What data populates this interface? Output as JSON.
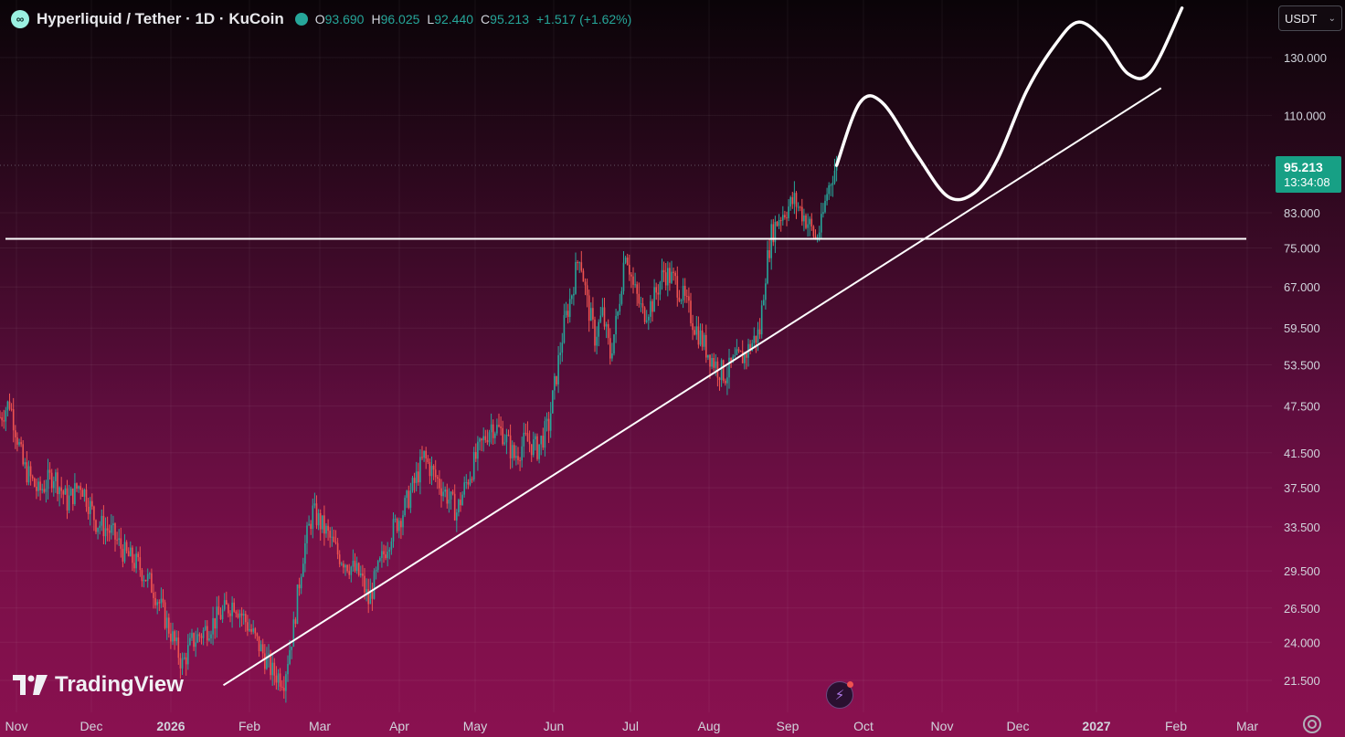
{
  "header": {
    "symbol_title": "Hyperliquid / Tether · 1D · KuCoin",
    "ohlc": [
      {
        "key": "O",
        "value": "93.690"
      },
      {
        "key": "H",
        "value": "96.025"
      },
      {
        "key": "L",
        "value": "92.440"
      },
      {
        "key": "C",
        "value": "95.213"
      },
      {
        "key": "",
        "value": "+1.517 (+1.62%)"
      }
    ]
  },
  "currency": {
    "label": "USDT"
  },
  "price_tag": {
    "price": "95.213",
    "countdown": "13:34:08"
  },
  "brand": {
    "name": "TradingView"
  },
  "colors": {
    "up": "#26a69a",
    "down": "#ef5350",
    "drawing": "#ffffff",
    "grid": "#ffffff"
  },
  "chart_data": {
    "type": "candlestick",
    "scale": "log",
    "y_ticks": [
      21.5,
      24.0,
      26.5,
      29.5,
      33.5,
      37.5,
      41.5,
      47.5,
      53.5,
      59.5,
      67.0,
      75.0,
      83.0,
      110.0,
      130.0
    ],
    "y_tick_labels": [
      "21.500",
      "24.000",
      "26.500",
      "29.500",
      "33.500",
      "37.500",
      "41.500",
      "47.500",
      "53.500",
      "59.500",
      "67.000",
      "75.000",
      "83.000",
      "110.000",
      "130.000"
    ],
    "x_ticks": [
      "Nov",
      "Dec",
      "2026",
      "Feb",
      "Mar",
      "Apr",
      "May",
      "Jun",
      "Jul",
      "Aug",
      "Sep",
      "Oct",
      "Nov",
      "Dec",
      "2027",
      "Feb",
      "Mar"
    ],
    "x_bold": [
      "2026",
      "2027"
    ],
    "last_close": 95.213,
    "path": [
      [
        0,
        46
      ],
      [
        5,
        48
      ],
      [
        12,
        40
      ],
      [
        20,
        37
      ],
      [
        28,
        39
      ],
      [
        35,
        36
      ],
      [
        42,
        38
      ],
      [
        50,
        34
      ],
      [
        58,
        33
      ],
      [
        65,
        31
      ],
      [
        72,
        30
      ],
      [
        80,
        28
      ],
      [
        88,
        25
      ],
      [
        95,
        22.5
      ],
      [
        100,
        24
      ],
      [
        108,
        25
      ],
      [
        115,
        26
      ],
      [
        122,
        27
      ],
      [
        130,
        25
      ],
      [
        136,
        23.5
      ],
      [
        142,
        22
      ],
      [
        148,
        21.6
      ],
      [
        153,
        25
      ],
      [
        158,
        31
      ],
      [
        163,
        35
      ],
      [
        170,
        33
      ],
      [
        176,
        31
      ],
      [
        182,
        30
      ],
      [
        188,
        29
      ],
      [
        192,
        27
      ],
      [
        198,
        30
      ],
      [
        204,
        33
      ],
      [
        210,
        35
      ],
      [
        216,
        38
      ],
      [
        221,
        41
      ],
      [
        226,
        39
      ],
      [
        232,
        37
      ],
      [
        238,
        35
      ],
      [
        243,
        38
      ],
      [
        250,
        42
      ],
      [
        256,
        45
      ],
      [
        262,
        44
      ],
      [
        268,
        41
      ],
      [
        274,
        43
      ],
      [
        280,
        42
      ],
      [
        286,
        45
      ],
      [
        290,
        52
      ],
      [
        294,
        60
      ],
      [
        298,
        66
      ],
      [
        302,
        74
      ],
      [
        306,
        64
      ],
      [
        310,
        58
      ],
      [
        314,
        62
      ],
      [
        318,
        55
      ],
      [
        322,
        62
      ],
      [
        326,
        75
      ],
      [
        330,
        67
      ],
      [
        335,
        62
      ],
      [
        340,
        64
      ],
      [
        346,
        70
      ],
      [
        352,
        68
      ],
      [
        356,
        65
      ],
      [
        362,
        60
      ],
      [
        368,
        56
      ],
      [
        374,
        53
      ],
      [
        378,
        52
      ],
      [
        383,
        54
      ],
      [
        388,
        55
      ],
      [
        392,
        57
      ],
      [
        396,
        59
      ],
      [
        399,
        70
      ],
      [
        402,
        78
      ],
      [
        406,
        82
      ],
      [
        410,
        84
      ],
      [
        414,
        86
      ],
      [
        418,
        83
      ],
      [
        422,
        80
      ],
      [
        425,
        77
      ],
      [
        428,
        80
      ],
      [
        431,
        88
      ],
      [
        434,
        93
      ],
      [
        436,
        95.2
      ]
    ],
    "horizontal_line": 77.0,
    "trend_line": {
      "from": [
        145,
        21.2
      ],
      "to": [
        737,
        119
      ]
    },
    "projection": [
      [
        436,
        95.2
      ],
      [
        448,
        114
      ],
      [
        460,
        114
      ],
      [
        478,
        98
      ],
      [
        494,
        87
      ],
      [
        508,
        88
      ],
      [
        520,
        97
      ],
      [
        535,
        118
      ],
      [
        550,
        135
      ],
      [
        562,
        144
      ],
      [
        575,
        137
      ],
      [
        588,
        124
      ],
      [
        600,
        125
      ],
      [
        616,
        150
      ]
    ]
  }
}
